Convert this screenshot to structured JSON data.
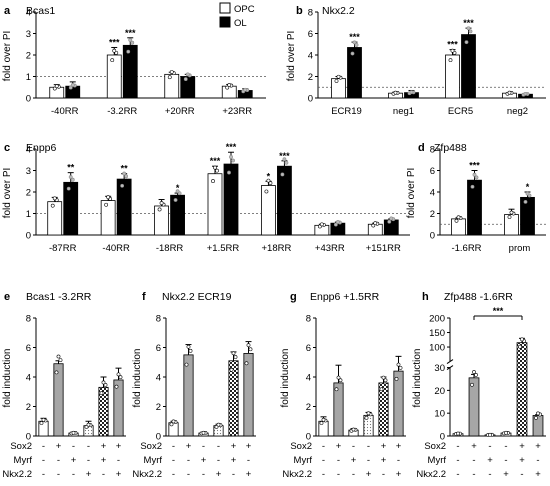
{
  "legend": [
    {
      "label": "OPC",
      "color": "#ffffff"
    },
    {
      "label": "OL",
      "color": "#000000"
    }
  ],
  "condition_rows": [
    "Sox2",
    "Myrf",
    "Nkx2.2"
  ],
  "chart_data": [
    {
      "id": "a",
      "panel_letter": "a",
      "title": "Bcas1",
      "type": "bar",
      "ylabel": "fold over PI",
      "ylim": [
        0,
        4
      ],
      "yticks": [
        0,
        1,
        2,
        3,
        4
      ],
      "reference_line": 1,
      "categories": [
        "-40RR",
        "-3.2RR",
        "+20RR",
        "+23RR"
      ],
      "series": [
        {
          "name": "OPC",
          "values": [
            0.5,
            2.0,
            1.1,
            0.55
          ],
          "errors": [
            0.12,
            0.35,
            0.1,
            0.08
          ],
          "stars": [
            "",
            "***",
            "",
            ""
          ]
        },
        {
          "name": "OL",
          "values": [
            0.55,
            2.45,
            1.0,
            0.35
          ],
          "errors": [
            0.2,
            0.35,
            0.1,
            0.08
          ],
          "stars": [
            "",
            "***",
            "",
            ""
          ]
        }
      ]
    },
    {
      "id": "b",
      "panel_letter": "b",
      "title": "Nkx2.2",
      "type": "bar",
      "ylabel": "fold over PI",
      "ylim": [
        0,
        8
      ],
      "yticks": [
        0,
        2,
        4,
        6,
        8
      ],
      "reference_line": 1,
      "categories": [
        "ECR19",
        "neg1",
        "ECR5",
        "neg2"
      ],
      "series": [
        {
          "name": "OPC",
          "values": [
            1.8,
            0.45,
            4.0,
            0.45
          ],
          "errors": [
            0.2,
            0.1,
            0.5,
            0.05
          ],
          "stars": [
            "",
            "",
            "***",
            ""
          ]
        },
        {
          "name": "OL",
          "values": [
            4.7,
            0.5,
            5.9,
            0.35
          ],
          "errors": [
            0.5,
            0.2,
            0.6,
            0.05
          ],
          "stars": [
            "***",
            "",
            "***",
            ""
          ]
        }
      ]
    },
    {
      "id": "c",
      "panel_letter": "c",
      "title": "Enpp6",
      "type": "bar",
      "ylabel": "fold over PI",
      "ylim": [
        0,
        4
      ],
      "yticks": [
        0,
        1,
        2,
        3,
        4
      ],
      "reference_line": 1,
      "categories": [
        "-87RR",
        "-40RR",
        "-18RR",
        "+1.5RR",
        "+18RR",
        "+43RR",
        "+151RR"
      ],
      "series": [
        {
          "name": "OPC",
          "values": [
            1.55,
            1.6,
            1.35,
            2.85,
            2.3,
            0.45,
            0.5
          ],
          "errors": [
            0.2,
            0.2,
            0.3,
            0.35,
            0.2,
            0.05,
            0.05
          ],
          "stars": [
            "",
            "",
            "",
            "***",
            "*",
            "",
            ""
          ]
        },
        {
          "name": "OL",
          "values": [
            2.45,
            2.6,
            1.85,
            3.3,
            3.2,
            0.55,
            0.7
          ],
          "errors": [
            0.45,
            0.25,
            0.1,
            0.55,
            0.25,
            0.05,
            0.05
          ],
          "stars": [
            "**",
            "**",
            "*",
            "***",
            "***",
            "",
            ""
          ]
        }
      ]
    },
    {
      "id": "d",
      "panel_letter": "d",
      "title": "Zfp488",
      "type": "bar",
      "ylabel": "fold over PI",
      "ylim": [
        0,
        8
      ],
      "yticks": [
        0,
        2,
        4,
        6,
        8
      ],
      "reference_line": 1,
      "categories": [
        "-1.6RR",
        "prom"
      ],
      "series": [
        {
          "name": "OPC",
          "values": [
            1.5,
            1.9
          ],
          "errors": [
            0.1,
            0.5
          ],
          "stars": [
            "",
            ""
          ]
        },
        {
          "name": "OL",
          "values": [
            5.1,
            3.5
          ],
          "errors": [
            0.9,
            0.5
          ],
          "stars": [
            "***",
            "*"
          ]
        }
      ]
    },
    {
      "id": "e",
      "panel_letter": "e",
      "title": "Bcas1 -3.2RR",
      "type": "bar",
      "ylabel": "fold induction",
      "ylim": [
        0,
        8
      ],
      "yticks": [
        0,
        2,
        4,
        6,
        8
      ],
      "conditions": [
        [
          "-",
          "+",
          "-",
          "-",
          "+",
          "+"
        ],
        [
          "-",
          "-",
          "+",
          "-",
          "+",
          "-"
        ],
        [
          "-",
          "-",
          "-",
          "+",
          "-",
          "+"
        ]
      ],
      "values": [
        1.0,
        4.9,
        0.2,
        0.7,
        3.3,
        3.8
      ],
      "errors": [
        0.2,
        0.2,
        0.05,
        0.3,
        0.7,
        0.8
      ],
      "stars": []
    },
    {
      "id": "f",
      "panel_letter": "f",
      "title": "Nkx2.2 ECR19",
      "type": "bar",
      "ylabel": "fold induction",
      "ylim": [
        0,
        8
      ],
      "yticks": [
        0,
        2,
        4,
        6,
        8
      ],
      "conditions": [
        [
          "-",
          "+",
          "-",
          "-",
          "+",
          "+"
        ],
        [
          "-",
          "-",
          "+",
          "-",
          "+",
          "-"
        ],
        [
          "-",
          "-",
          "-",
          "+",
          "-",
          "+"
        ]
      ],
      "values": [
        0.9,
        5.5,
        0.2,
        0.7,
        5.1,
        5.6
      ],
      "errors": [
        0.1,
        0.7,
        0.05,
        0.1,
        0.6,
        0.8
      ],
      "stars": []
    },
    {
      "id": "g",
      "panel_letter": "g",
      "title": "Enpp6 +1.5RR",
      "type": "bar",
      "ylabel": "fold induction",
      "ylim": [
        0,
        8
      ],
      "yticks": [
        0,
        2,
        4,
        6,
        8
      ],
      "conditions": [
        [
          "-",
          "+",
          "-",
          "-",
          "+",
          "+"
        ],
        [
          "-",
          "-",
          "+",
          "-",
          "+",
          "-"
        ],
        [
          "-",
          "-",
          "-",
          "+",
          "-",
          "+"
        ]
      ],
      "values": [
        1.0,
        3.6,
        0.4,
        1.4,
        3.6,
        4.4
      ],
      "errors": [
        0.3,
        1.2,
        0.1,
        0.2,
        0.4,
        1.0
      ],
      "stars": []
    },
    {
      "id": "h",
      "panel_letter": "h",
      "title": "Zfp488 -1.6RR",
      "type": "bar",
      "ylabel": "fold induction",
      "ylim": [
        0,
        200
      ],
      "yticks": [
        0,
        10,
        20,
        30,
        100,
        150,
        200
      ],
      "axis_break": [
        30,
        50
      ],
      "conditions": [
        [
          "-",
          "+",
          "-",
          "-",
          "+",
          "+"
        ],
        [
          "-",
          "-",
          "+",
          "-",
          "+",
          "-"
        ],
        [
          "-",
          "-",
          "-",
          "+",
          "-",
          "+"
        ]
      ],
      "values": [
        1.0,
        25.5,
        0.5,
        1.3,
        115,
        9.0
      ],
      "errors": [
        0.2,
        1.5,
        0.1,
        0.2,
        15,
        0.3
      ],
      "stars": [
        "***"
      ]
    }
  ]
}
